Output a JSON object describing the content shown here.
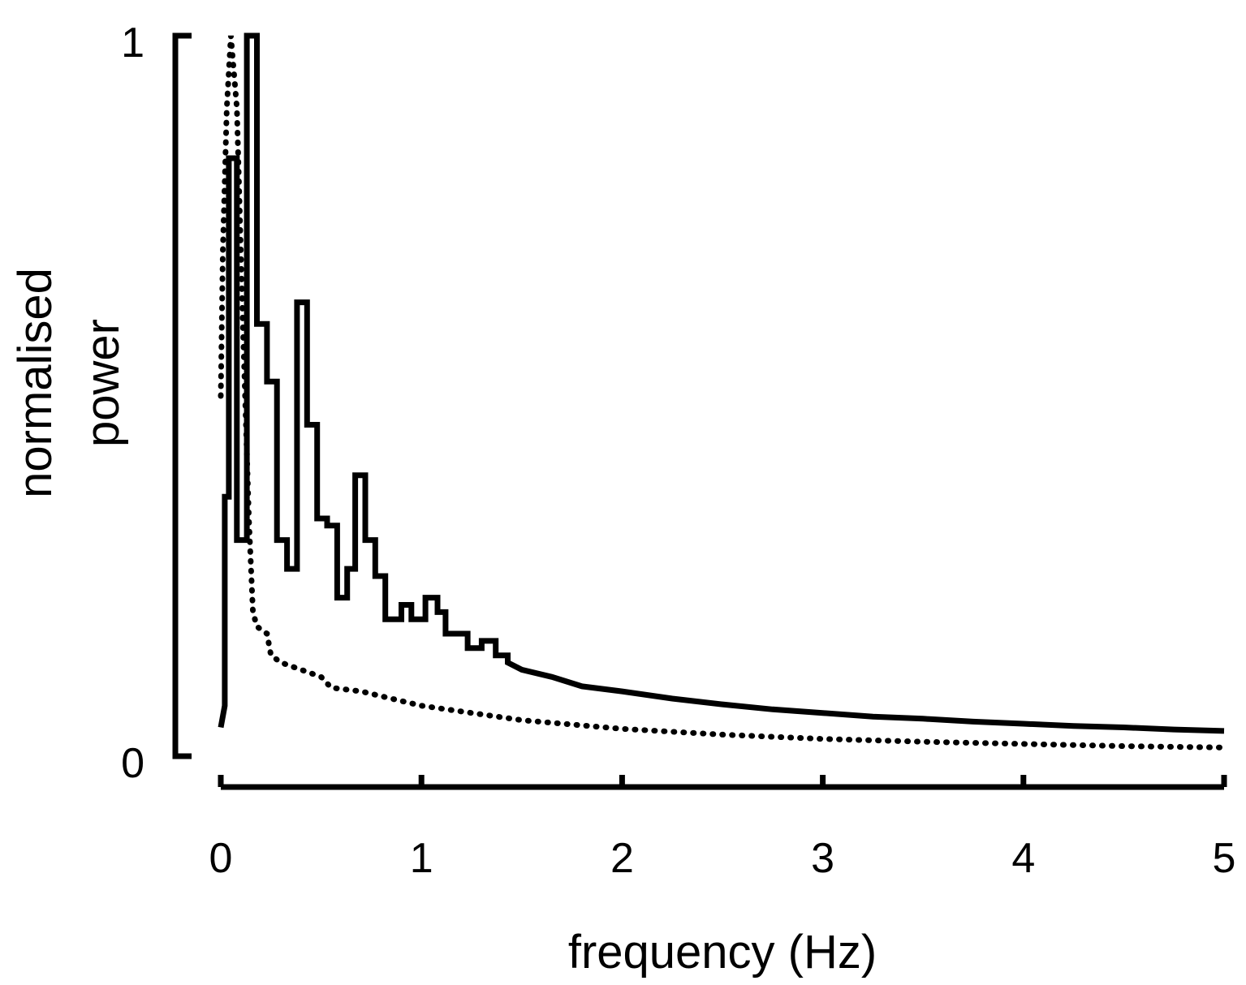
{
  "chart_data": {
    "type": "line",
    "xlabel": "frequency (Hz)",
    "ylabel_lines": [
      "normalised",
      "power"
    ],
    "xlim": [
      0,
      5
    ],
    "ylim": [
      0,
      1
    ],
    "x_ticks": [
      "0",
      "1",
      "2",
      "3",
      "4",
      "5"
    ],
    "y_ticks": [
      "0",
      "1"
    ],
    "grid": false,
    "legend": "none",
    "series": [
      {
        "style": "solid",
        "color": "#000000",
        "points": [
          [
            0.0,
            0.04
          ],
          [
            0.02,
            0.07
          ],
          [
            0.02,
            0.36
          ],
          [
            0.04,
            0.36
          ],
          [
            0.04,
            0.83
          ],
          [
            0.08,
            0.83
          ],
          [
            0.08,
            0.3
          ],
          [
            0.13,
            0.3
          ],
          [
            0.13,
            1.0
          ],
          [
            0.18,
            1.0
          ],
          [
            0.18,
            0.6
          ],
          [
            0.23,
            0.6
          ],
          [
            0.23,
            0.52
          ],
          [
            0.28,
            0.52
          ],
          [
            0.28,
            0.3
          ],
          [
            0.33,
            0.3
          ],
          [
            0.33,
            0.26
          ],
          [
            0.38,
            0.26
          ],
          [
            0.38,
            0.63
          ],
          [
            0.43,
            0.63
          ],
          [
            0.43,
            0.46
          ],
          [
            0.48,
            0.46
          ],
          [
            0.48,
            0.33
          ],
          [
            0.53,
            0.33
          ],
          [
            0.53,
            0.32
          ],
          [
            0.58,
            0.32
          ],
          [
            0.58,
            0.22
          ],
          [
            0.63,
            0.22
          ],
          [
            0.63,
            0.26
          ],
          [
            0.67,
            0.26
          ],
          [
            0.67,
            0.39
          ],
          [
            0.72,
            0.39
          ],
          [
            0.72,
            0.3
          ],
          [
            0.77,
            0.3
          ],
          [
            0.77,
            0.25
          ],
          [
            0.82,
            0.25
          ],
          [
            0.82,
            0.19
          ],
          [
            0.9,
            0.19
          ],
          [
            0.9,
            0.21
          ],
          [
            0.95,
            0.21
          ],
          [
            0.95,
            0.19
          ],
          [
            1.02,
            0.19
          ],
          [
            1.02,
            0.22
          ],
          [
            1.08,
            0.22
          ],
          [
            1.08,
            0.2
          ],
          [
            1.12,
            0.2
          ],
          [
            1.12,
            0.17
          ],
          [
            1.2,
            0.17
          ],
          [
            1.2,
            0.17
          ],
          [
            1.23,
            0.17
          ],
          [
            1.23,
            0.15
          ],
          [
            1.3,
            0.15
          ],
          [
            1.3,
            0.16
          ],
          [
            1.37,
            0.16
          ],
          [
            1.37,
            0.14
          ],
          [
            1.43,
            0.14
          ],
          [
            1.43,
            0.13
          ],
          [
            1.5,
            0.12
          ],
          [
            1.65,
            0.11
          ],
          [
            1.8,
            0.097
          ],
          [
            2.0,
            0.09
          ],
          [
            2.25,
            0.08
          ],
          [
            2.5,
            0.072
          ],
          [
            2.75,
            0.065
          ],
          [
            3.0,
            0.06
          ],
          [
            3.25,
            0.055
          ],
          [
            3.5,
            0.052
          ],
          [
            3.75,
            0.048
          ],
          [
            4.0,
            0.045
          ],
          [
            4.25,
            0.042
          ],
          [
            4.5,
            0.04
          ],
          [
            4.75,
            0.037
          ],
          [
            5.0,
            0.035
          ]
        ]
      },
      {
        "style": "dotted",
        "color": "#000000",
        "points": [
          [
            0.0,
            0.5
          ],
          [
            0.01,
            0.7
          ],
          [
            0.03,
            0.9
          ],
          [
            0.05,
            1.0
          ],
          [
            0.08,
            0.9
          ],
          [
            0.11,
            0.6
          ],
          [
            0.14,
            0.33
          ],
          [
            0.16,
            0.2
          ],
          [
            0.18,
            0.18
          ],
          [
            0.23,
            0.17
          ],
          [
            0.25,
            0.14
          ],
          [
            0.3,
            0.13
          ],
          [
            0.4,
            0.12
          ],
          [
            0.5,
            0.11
          ],
          [
            0.55,
            0.095
          ],
          [
            0.7,
            0.09
          ],
          [
            0.85,
            0.08
          ],
          [
            1.0,
            0.07
          ],
          [
            1.25,
            0.06
          ],
          [
            1.5,
            0.05
          ],
          [
            2.0,
            0.038
          ],
          [
            2.5,
            0.03
          ],
          [
            3.0,
            0.024
          ],
          [
            3.5,
            0.02
          ],
          [
            4.0,
            0.017
          ],
          [
            4.5,
            0.014
          ],
          [
            5.0,
            0.012
          ]
        ]
      }
    ]
  }
}
